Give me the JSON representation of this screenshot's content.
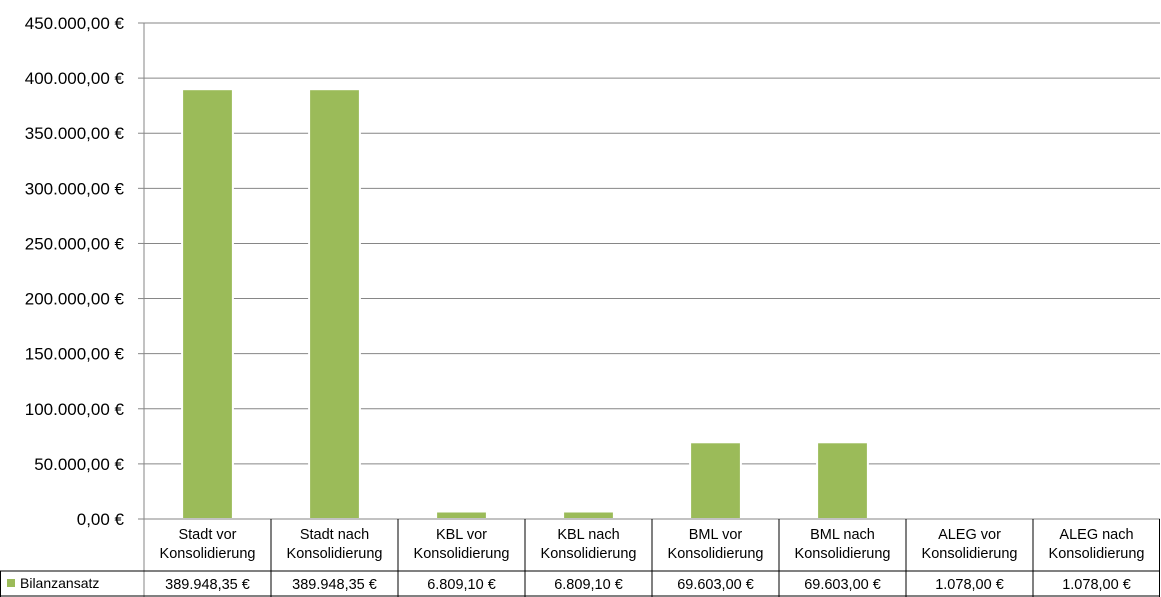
{
  "chart_data": {
    "type": "bar",
    "categories": [
      [
        "Stadt vor",
        "Konsolidierung"
      ],
      [
        "Stadt nach",
        "Konsolidierung"
      ],
      [
        "KBL vor",
        "Konsolidierung"
      ],
      [
        "KBL nach",
        "Konsolidierung"
      ],
      [
        "BML vor",
        "Konsolidierung"
      ],
      [
        "BML nach",
        "Konsolidierung"
      ],
      [
        "ALEG vor",
        "Konsolidierung"
      ],
      [
        "ALEG nach",
        "Konsolidierung"
      ]
    ],
    "series": [
      {
        "name": "Bilanzansatz",
        "color": "#9BBB59",
        "values": [
          389948.35,
          389948.35,
          6809.1,
          6809.1,
          69603.0,
          69603.0,
          1078.0,
          1078.0
        ],
        "labels": [
          "389.948,35 €",
          "389.948,35 €",
          "6.809,10 €",
          "6.809,10 €",
          "69.603,00 €",
          "69.603,00 €",
          "1.078,00 €",
          "1.078,00 €"
        ]
      }
    ],
    "ylim": [
      0,
      450000
    ],
    "ytick_labels": [
      "0,00 €",
      "50.000,00 €",
      "100.000,00 €",
      "150.000,00 €",
      "200.000,00 €",
      "250.000,00 €",
      "300.000,00 €",
      "350.000,00 €",
      "400.000,00 €",
      "450.000,00 €"
    ],
    "grid": true,
    "legend": "data-table-row",
    "data_table": true,
    "title": "",
    "xlabel": "",
    "ylabel": ""
  }
}
